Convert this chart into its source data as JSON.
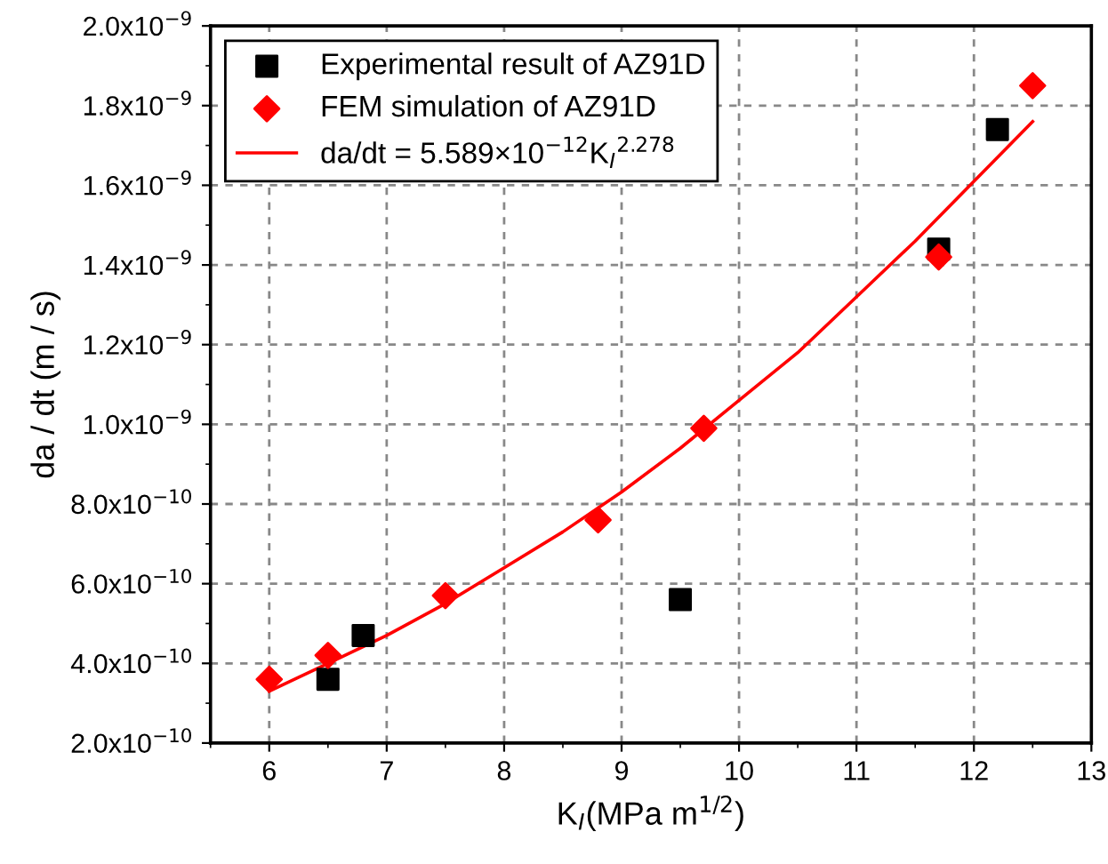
{
  "chart_data": {
    "type": "scatter",
    "xlabel": "K$_{I}$(MPa m$^{1/2}$)",
    "ylabel": "da / dt (m / s)",
    "xlim": [
      5.5,
      13
    ],
    "xticks": [
      6,
      7,
      8,
      9,
      10,
      11,
      12,
      13
    ],
    "ylim": [
      2e-10,
      2e-09
    ],
    "yticks": [
      {
        "value": 2e-10,
        "label": "2.0x10$^{−10}$"
      },
      {
        "value": 4e-10,
        "label": "4.0x10$^{−10}$"
      },
      {
        "value": 6e-10,
        "label": "6.0x10$^{−10}$"
      },
      {
        "value": 8e-10,
        "label": "8.0x10$^{−10}$"
      },
      {
        "value": 1e-09,
        "label": "1.0x10$^{−9}$"
      },
      {
        "value": 1.2e-09,
        "label": "1.2x10$^{−9}$"
      },
      {
        "value": 1.4e-09,
        "label": "1.4x10$^{−9}$"
      },
      {
        "value": 1.6e-09,
        "label": "1.6x10$^{−9}$"
      },
      {
        "value": 1.8e-09,
        "label": "1.8x10$^{−9}$"
      },
      {
        "value": 2e-09,
        "label": "2.0x10$^{−9}$"
      }
    ],
    "grid": true,
    "legend": "top left",
    "series": [
      {
        "name": "Experimental result of AZ91D",
        "marker": "square",
        "color": "#000000",
        "x": [
          6.5,
          6.8,
          9.5,
          11.7,
          12.2
        ],
        "values": [
          3.6e-10,
          4.7e-10,
          5.6e-10,
          1.44e-09,
          1.74e-09
        ]
      },
      {
        "name": "FEM simulation of AZ91D",
        "marker": "diamond",
        "color": "#ff0000",
        "x": [
          6.0,
          6.5,
          7.5,
          8.8,
          9.7,
          11.7,
          12.5
        ],
        "values": [
          3.6e-10,
          4.2e-10,
          5.7e-10,
          7.6e-10,
          9.9e-10,
          1.42e-09,
          1.85e-09
        ]
      },
      {
        "name": "da/dt = 5.589×10$^{−12}$K$_{I}$$^{2.278}$",
        "type": "line",
        "marker": "none",
        "line_style": "solid",
        "color": "#ff0000",
        "x": [
          6.0,
          6.5,
          7.0,
          7.5,
          8.0,
          8.5,
          9.0,
          9.5,
          10.0,
          10.5,
          11.0,
          11.5,
          12.0,
          12.5
        ],
        "values": [
          3.3e-10,
          4e-10,
          4.7e-10,
          5.5e-10,
          6.4e-10,
          7.3e-10,
          8.3e-10,
          9.4e-10,
          1.06e-09,
          1.18e-09,
          1.32e-09,
          1.46e-09,
          1.61e-09,
          1.76e-09
        ]
      }
    ]
  }
}
